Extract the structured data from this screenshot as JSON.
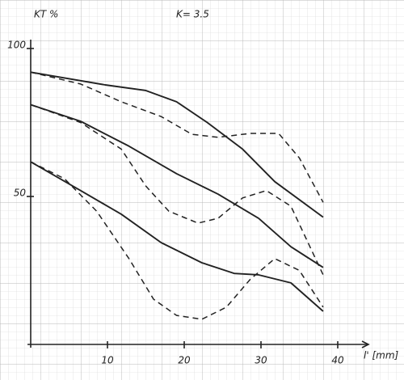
{
  "chart_data": {
    "type": "line",
    "title": "K= 3.5",
    "y_label": "KT %",
    "x_label": "l' [mm]",
    "xlim": [
      0,
      44
    ],
    "ylim": [
      0,
      103
    ],
    "xticks": [
      10,
      20,
      30,
      40
    ],
    "yticks": [
      50,
      100
    ],
    "series": [
      {
        "color": "#222",
        "dashed": false,
        "x": [
          0,
          9.7,
          15,
          19,
          23,
          27.6,
          31.8,
          38.1
        ],
        "values": [
          92,
          87.7,
          85.8,
          82,
          75,
          66,
          55,
          43
        ]
      },
      {
        "color": "#222",
        "dashed": true,
        "x": [
          0,
          6.5,
          11.8,
          17,
          21,
          24.4,
          28.6,
          32.3,
          35,
          38.1
        ],
        "values": [
          92,
          88,
          82,
          77,
          71,
          70,
          71.3,
          71.3,
          63,
          48
        ]
      },
      {
        "color": "#222",
        "dashed": false,
        "x": [
          0,
          6.5,
          12.8,
          19,
          24.4,
          29.7,
          33.9,
          38.1
        ],
        "values": [
          81,
          75.4,
          67,
          57.7,
          50.8,
          42.6,
          33,
          26
        ]
      },
      {
        "color": "#222",
        "dashed": true,
        "x": [
          0,
          6.5,
          11.8,
          15,
          18,
          21.8,
          24.4,
          27.6,
          30.7,
          33.9,
          38.1
        ],
        "values": [
          81,
          75,
          66,
          53.5,
          45,
          41,
          42.6,
          49.5,
          52,
          46.7,
          23.5
        ]
      },
      {
        "color": "#222",
        "dashed": false,
        "x": [
          0,
          6.5,
          11.8,
          17,
          22.3,
          26.5,
          29.7,
          33.9,
          38.1
        ],
        "values": [
          61.7,
          52,
          44,
          34.4,
          27.6,
          24,
          23.5,
          20.8,
          11.2
        ]
      },
      {
        "color": "#222",
        "dashed": true,
        "x": [
          0,
          4.4,
          8.6,
          12.8,
          16,
          19,
          22.3,
          25.5,
          28.6,
          31.8,
          35,
          38.1
        ],
        "values": [
          61.7,
          56,
          45,
          29,
          15.3,
          9.8,
          8.5,
          12.6,
          22,
          29,
          25,
          12.6
        ]
      }
    ]
  }
}
